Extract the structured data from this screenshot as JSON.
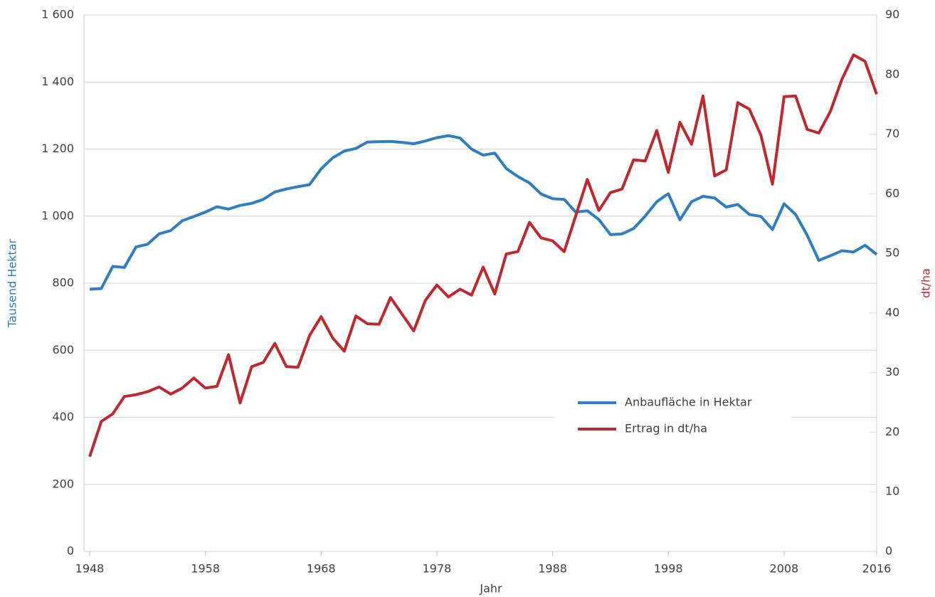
{
  "chart_data": {
    "type": "line",
    "x": [
      1948,
      1949,
      1950,
      1951,
      1952,
      1953,
      1954,
      1955,
      1956,
      1957,
      1958,
      1959,
      1960,
      1961,
      1962,
      1963,
      1964,
      1965,
      1966,
      1967,
      1968,
      1969,
      1970,
      1971,
      1972,
      1973,
      1974,
      1975,
      1976,
      1977,
      1978,
      1979,
      1980,
      1981,
      1982,
      1983,
      1984,
      1985,
      1986,
      1987,
      1988,
      1989,
      1990,
      1991,
      1992,
      1993,
      1994,
      1995,
      1996,
      1997,
      1998,
      1999,
      2000,
      2001,
      2002,
      2003,
      2004,
      2005,
      2006,
      2007,
      2008,
      2009,
      2010,
      2011,
      2012,
      2013,
      2014,
      2015,
      2016
    ],
    "series": [
      {
        "name": "Anbaufläche in Hektar",
        "color": "#2e7ec1",
        "values": [
          782,
          784,
          850,
          847,
          908,
          916,
          947,
          957,
          986,
          999,
          1012,
          1028,
          1021,
          1032,
          1038,
          1050,
          1072,
          1081,
          1088,
          1094,
          1141,
          1174,
          1194,
          1202,
          1221,
          1222,
          1223,
          1220,
          1216,
          1224,
          1234,
          1240,
          1233,
          1200,
          1182,
          1188,
          1142,
          1118,
          1099,
          1066,
          1052,
          1050,
          1012,
          1016,
          990,
          945,
          947,
          963,
          1000,
          1043,
          1067,
          989,
          1043,
          1059,
          1054,
          1027,
          1035,
          1005,
          999,
          960,
          1037,
          1005,
          943,
          868,
          882,
          897,
          893,
          913,
          886
        ]
      },
      {
        "name": "Ertrag in dt/ha",
        "color": "#c0282f",
        "axis": "y2",
        "values": [
          15.9,
          21.8,
          23.1,
          26.0,
          26.3,
          26.8,
          27.6,
          26.4,
          27.4,
          29.1,
          27.4,
          27.7,
          33.0,
          24.9,
          31.0,
          31.7,
          34.9,
          31.0,
          30.9,
          36.2,
          39.4,
          35.8,
          33.6,
          39.5,
          38.2,
          38.1,
          42.6,
          39.8,
          37.0,
          42.1,
          44.7,
          42.7,
          44.0,
          43.0,
          47.7,
          43.2,
          49.9,
          50.3,
          55.2,
          52.6,
          52.1,
          50.3,
          56.3,
          62.4,
          57.2,
          60.2,
          60.8,
          65.7,
          65.5,
          70.6,
          63.6,
          72.0,
          68.3,
          76.4,
          63.0,
          64.0,
          75.3,
          74.2,
          69.8,
          61.6,
          76.3,
          76.4,
          70.8,
          70.2,
          73.8,
          79.2,
          83.3,
          82.2,
          76.7
        ]
      }
    ],
    "xlabel": "Jahr",
    "ylabel": "Tausend Hektar",
    "y2label": "dt/ha",
    "xlim": [
      1948,
      2016
    ],
    "xticks": [
      1948,
      1958,
      1968,
      1978,
      1988,
      1998,
      2008,
      2016
    ],
    "ylim": [
      0,
      1600
    ],
    "yticks": [
      0,
      200,
      400,
      600,
      800,
      {
        "value": 1000,
        "label": "1 000"
      },
      {
        "value": 1200,
        "label": "1 200"
      },
      {
        "value": 1400,
        "label": "1 400"
      },
      {
        "value": 1600,
        "label": "1 600"
      }
    ],
    "y2lim": [
      0,
      90
    ],
    "y2ticks": [
      0,
      10,
      20,
      30,
      40,
      50,
      60,
      70,
      80,
      90
    ],
    "grid": true
  }
}
